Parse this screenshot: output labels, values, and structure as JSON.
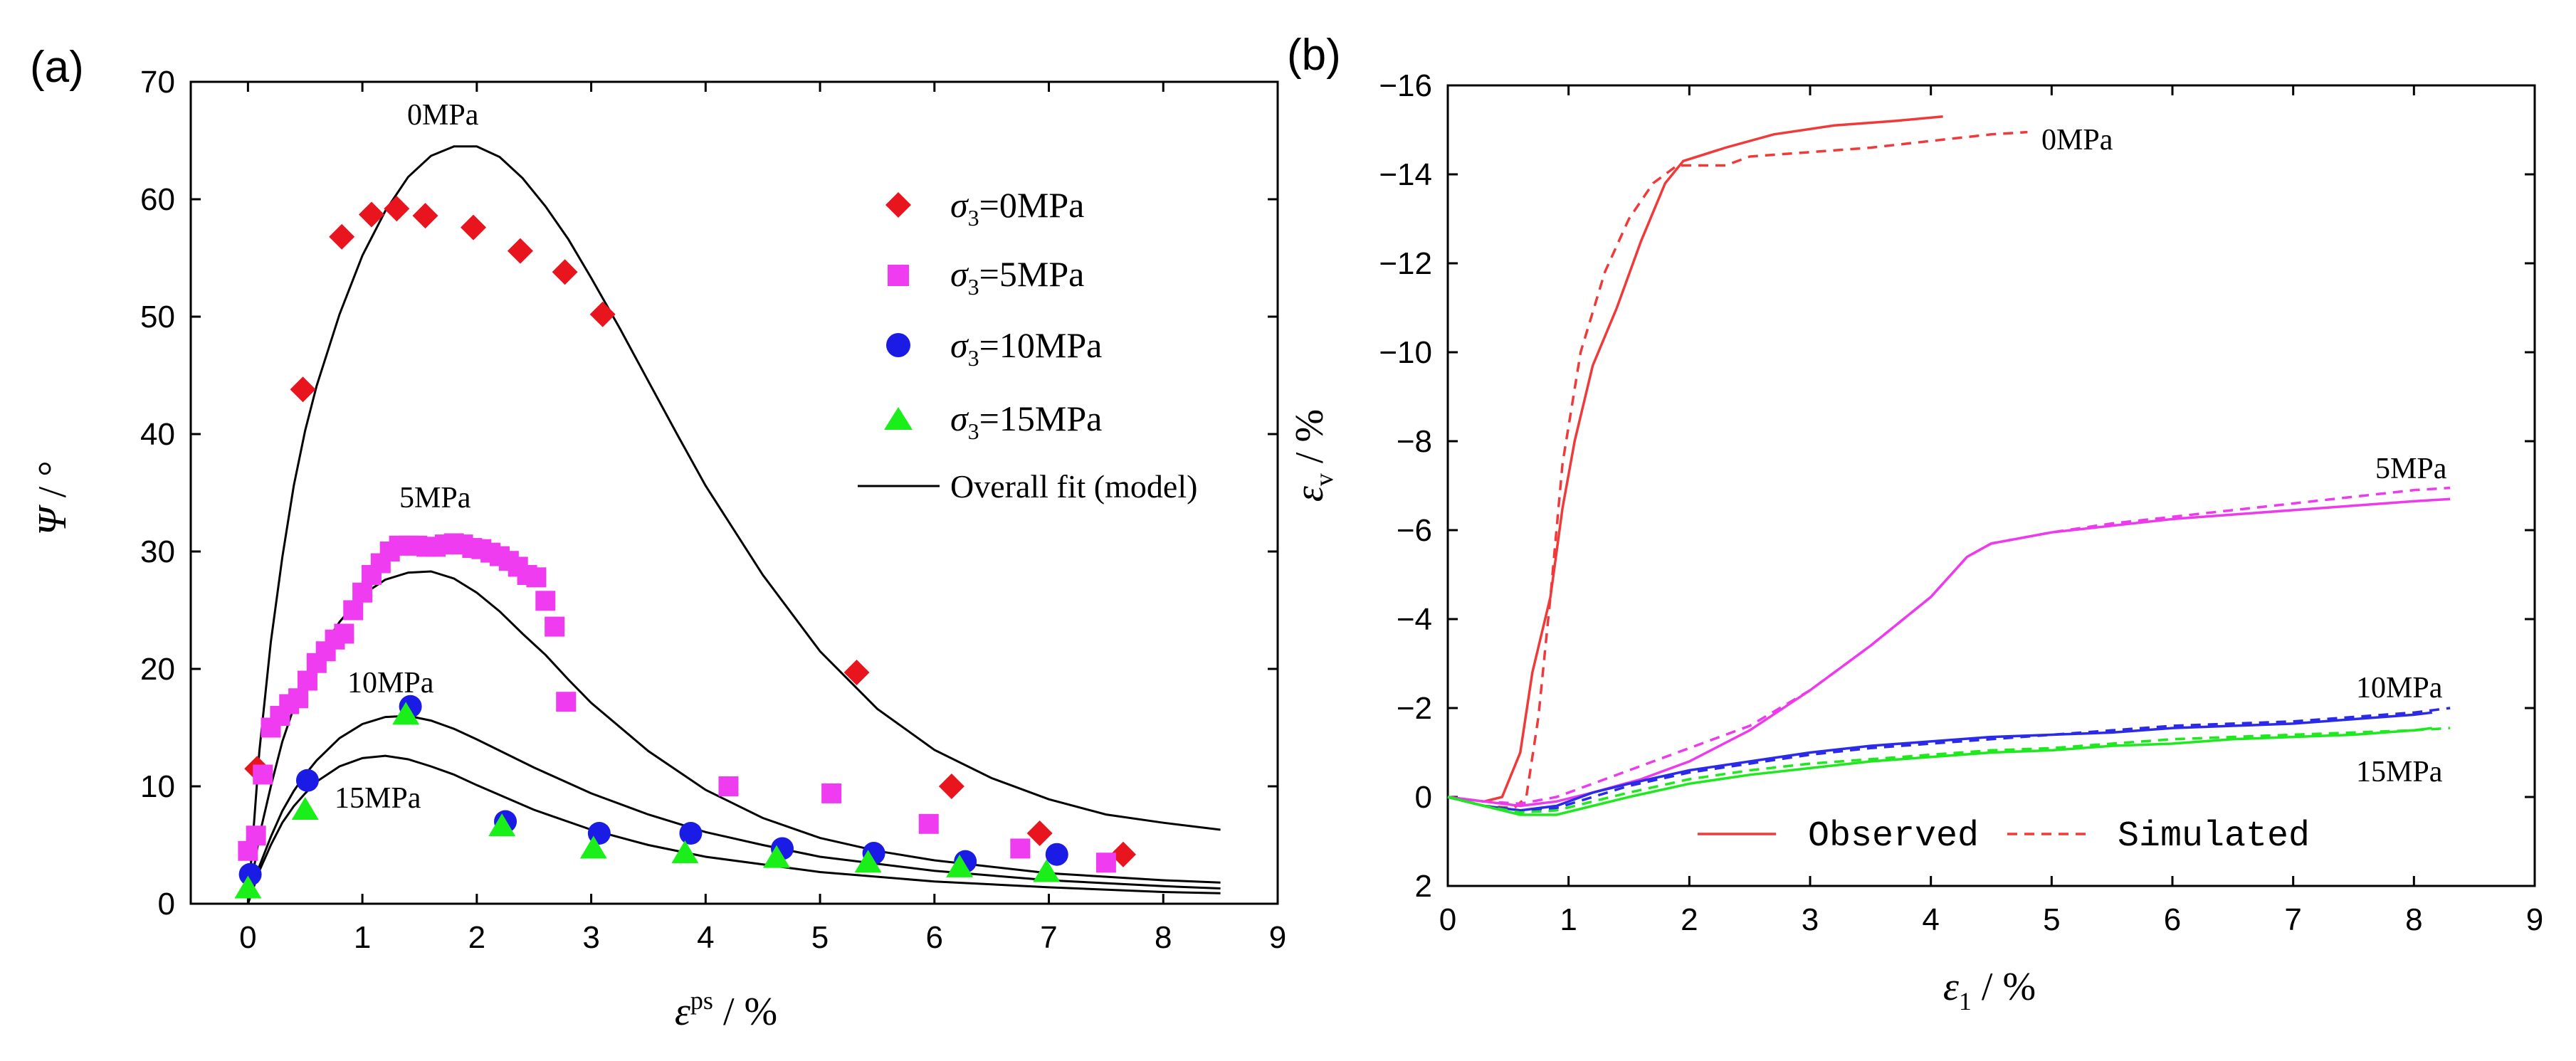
{
  "chart_data": [
    {
      "panel": "(a)",
      "type": "scatter",
      "xlabel_symbol": "ε",
      "xlabel_sup": "ps",
      "xlabel_unit": " / %",
      "ylabel_symbol": "Ψ",
      "ylabel_unit": " / °",
      "xlim": [
        -0.5,
        9
      ],
      "ylim": [
        0,
        70
      ],
      "xticks": [
        "0",
        "1",
        "2",
        "3",
        "4",
        "5",
        "6",
        "7",
        "8",
        "9"
      ],
      "yticks": [
        "0",
        "10",
        "20",
        "30",
        "40",
        "50",
        "60",
        "70"
      ],
      "series": [
        {
          "name": "0MPa",
          "legend_pre": "σ",
          "legend_sub": "3",
          "legend_post": "=0MPa",
          "marker": "diamond",
          "color": "#e8141e",
          "x": [
            0.08,
            0.48,
            0.82,
            1.08,
            1.3,
            1.55,
            1.97,
            2.38,
            2.77,
            3.1,
            5.32,
            6.15,
            6.92,
            7.65
          ],
          "y": [
            11.5,
            43.8,
            56.8,
            58.7,
            59.2,
            58.6,
            57.6,
            55.6,
            53.8,
            50.2,
            19.7,
            10.0,
            6.0,
            4.2
          ]
        },
        {
          "name": "5MPa",
          "legend_pre": "σ",
          "legend_sub": "3",
          "legend_post": "=5MPa",
          "marker": "square",
          "color": "#f03cf0",
          "x": [
            0.0,
            0.07,
            0.13,
            0.2,
            0.28,
            0.36,
            0.44,
            0.52,
            0.6,
            0.68,
            0.76,
            0.84,
            0.92,
            1.0,
            1.08,
            1.16,
            1.24,
            1.32,
            1.4,
            1.48,
            1.56,
            1.64,
            1.72,
            1.8,
            1.88,
            1.96,
            2.04,
            2.12,
            2.2,
            2.28,
            2.36,
            2.44,
            2.52,
            2.6,
            2.68,
            2.78,
            4.2,
            5.1,
            5.95,
            6.75,
            7.5
          ],
          "y": [
            4.5,
            5.8,
            11.0,
            15.0,
            16.0,
            17.0,
            17.5,
            19.0,
            20.5,
            21.5,
            22.5,
            23.0,
            25.0,
            26.5,
            28.0,
            29.0,
            30.0,
            30.5,
            30.5,
            30.5,
            30.4,
            30.4,
            30.6,
            30.7,
            30.6,
            30.3,
            30.2,
            29.9,
            29.6,
            29.2,
            28.7,
            28.0,
            27.8,
            25.8,
            23.6,
            17.2,
            10.0,
            9.4,
            6.8,
            4.7,
            3.5
          ]
        },
        {
          "name": "10MPa",
          "legend_pre": "σ",
          "legend_sub": "3",
          "legend_post": "=10MPa",
          "marker": "circle",
          "color": "#1b1be6",
          "x": [
            0.02,
            0.52,
            1.42,
            2.25,
            3.07,
            3.87,
            4.67,
            5.47,
            6.27,
            7.07
          ],
          "y": [
            2.5,
            10.5,
            16.8,
            7.0,
            6.0,
            6.0,
            4.7,
            4.3,
            3.6,
            4.2
          ]
        },
        {
          "name": "15MPa",
          "legend_pre": "σ",
          "legend_sub": "3",
          "legend_post": "=15MPa",
          "marker": "triangle",
          "color": "#1aef1a",
          "x": [
            0.0,
            0.5,
            1.38,
            2.22,
            3.02,
            3.82,
            4.62,
            5.42,
            6.22,
            6.98
          ],
          "y": [
            1.3,
            8.0,
            16.1,
            6.6,
            4.7,
            4.3,
            3.9,
            3.5,
            3.1,
            2.7
          ]
        }
      ],
      "fit_legend": "Overall fit (model)",
      "fit_curves": [
        {
          "label": "0MPa",
          "x": [
            0,
            0.1,
            0.2,
            0.3,
            0.4,
            0.5,
            0.6,
            0.8,
            1.0,
            1.2,
            1.4,
            1.6,
            1.8,
            2.0,
            2.2,
            2.4,
            2.6,
            2.8,
            3.0,
            3.25,
            3.5,
            3.75,
            4.0,
            4.5,
            5.0,
            5.5,
            6.0,
            6.5,
            7.0,
            7.5,
            8.0,
            8.5
          ],
          "y": [
            0,
            13.0,
            22.3,
            29.5,
            35.6,
            40.3,
            44.1,
            50.2,
            55.2,
            59.0,
            61.9,
            63.7,
            64.5,
            64.5,
            63.6,
            61.8,
            59.4,
            56.6,
            53.3,
            49.0,
            44.5,
            40.0,
            35.6,
            28.0,
            21.5,
            16.6,
            13.1,
            10.7,
            8.9,
            7.6,
            6.9,
            6.3
          ]
        },
        {
          "label": "5MPa",
          "x": [
            0,
            0.1,
            0.2,
            0.3,
            0.4,
            0.5,
            0.6,
            0.8,
            1.0,
            1.2,
            1.4,
            1.6,
            1.8,
            2.0,
            2.2,
            2.4,
            2.6,
            2.8,
            3.0,
            3.5,
            4.0,
            4.5,
            5.0,
            5.5,
            6.0,
            7.0,
            8.0,
            8.5
          ],
          "y": [
            0,
            5.8,
            10.0,
            13.8,
            16.7,
            19.0,
            21.0,
            24.0,
            26.3,
            27.6,
            28.2,
            28.3,
            27.7,
            26.5,
            24.9,
            23.0,
            21.2,
            19.1,
            17.1,
            13.0,
            9.7,
            7.3,
            5.6,
            4.5,
            3.7,
            2.6,
            2.0,
            1.8
          ]
        },
        {
          "label": "10MPa",
          "x": [
            0,
            0.1,
            0.2,
            0.3,
            0.4,
            0.5,
            0.6,
            0.8,
            1.0,
            1.2,
            1.4,
            1.6,
            1.8,
            2.0,
            2.5,
            3.0,
            3.5,
            4.0,
            4.5,
            5.0,
            6.0,
            7.0,
            8.0,
            8.5
          ],
          "y": [
            0,
            3.2,
            5.7,
            7.9,
            9.6,
            11.0,
            12.2,
            14.1,
            15.3,
            15.9,
            16.0,
            15.6,
            14.9,
            14.0,
            11.6,
            9.4,
            7.6,
            6.1,
            5.0,
            4.0,
            2.8,
            2.0,
            1.5,
            1.3
          ]
        },
        {
          "label": "15MPa",
          "x": [
            0,
            0.1,
            0.2,
            0.3,
            0.4,
            0.5,
            0.6,
            0.8,
            1.0,
            1.2,
            1.4,
            1.6,
            1.8,
            2.0,
            2.5,
            3.0,
            3.5,
            4.0,
            5.0,
            6.0,
            7.0,
            8.0,
            8.5
          ],
          "y": [
            0,
            2.8,
            5.0,
            6.9,
            8.3,
            9.4,
            10.4,
            11.7,
            12.4,
            12.6,
            12.3,
            11.7,
            11.0,
            10.1,
            8.0,
            6.3,
            5.0,
            4.0,
            2.7,
            1.9,
            1.4,
            1.0,
            0.9
          ]
        }
      ],
      "curve_labels": [
        "0MPa",
        "5MPa",
        "10MPa",
        "15MPa"
      ]
    },
    {
      "panel": "(b)",
      "type": "line",
      "xlabel_symbol": "ε",
      "xlabel_sub": "1",
      "xlabel_unit": " / %",
      "ylabel_symbol": "ε",
      "ylabel_sub": "v",
      "ylabel_unit": " / %",
      "xlim": [
        0,
        9
      ],
      "ylim": [
        2,
        -16
      ],
      "xticks": [
        "0",
        "1",
        "2",
        "3",
        "4",
        "5",
        "6",
        "7",
        "8",
        "9"
      ],
      "yticks": [
        "2",
        "0",
        "-2",
        "-4",
        "-6",
        "-8",
        "-10",
        "-12",
        "-14",
        "-16"
      ],
      "legend": {
        "observed": "Observed",
        "simulated": "Simulated"
      },
      "series": [
        {
          "name": "0MPa",
          "color": "#f03a3a",
          "style": "observed",
          "x": [
            0,
            0.3,
            0.45,
            0.6,
            0.7,
            0.85,
            0.95,
            1.05,
            1.2,
            1.4,
            1.6,
            1.8,
            1.95,
            2.3,
            2.7,
            3.2,
            3.7,
            4.1
          ],
          "y": [
            0,
            0.1,
            0.0,
            -1.0,
            -2.8,
            -4.5,
            -6.5,
            -8.0,
            -9.7,
            -11.0,
            -12.5,
            -13.8,
            -14.3,
            -14.6,
            -14.9,
            -15.1,
            -15.2,
            -15.3
          ]
        },
        {
          "name": "0MPa",
          "color": "#f03a3a",
          "style": "simulated",
          "x": [
            0,
            0.3,
            0.55,
            0.65,
            0.75,
            0.85,
            0.95,
            1.1,
            1.3,
            1.5,
            1.7,
            1.9,
            2.3,
            2.5,
            3.0,
            3.5,
            4.0,
            4.5,
            4.8
          ],
          "y": [
            0,
            0.2,
            0.25,
            0.0,
            -1.8,
            -4.5,
            -7.5,
            -10.0,
            -11.8,
            -13.0,
            -13.8,
            -14.2,
            -14.2,
            -14.4,
            -14.5,
            -14.6,
            -14.75,
            -14.9,
            -14.95
          ]
        },
        {
          "name": "5MPa",
          "color": "#ec3aec",
          "style": "observed",
          "x": [
            0,
            0.3,
            0.6,
            0.9,
            1.2,
            1.6,
            2.0,
            2.5,
            3.0,
            3.5,
            4.0,
            4.3,
            4.5,
            5.0,
            5.5,
            6.0,
            6.5,
            7.0,
            7.5,
            8.0,
            8.3
          ],
          "y": [
            0,
            0.1,
            0.2,
            0.1,
            -0.1,
            -0.4,
            -0.8,
            -1.5,
            -2.4,
            -3.4,
            -4.5,
            -5.4,
            -5.7,
            -5.95,
            -6.1,
            -6.25,
            -6.35,
            -6.45,
            -6.55,
            -6.65,
            -6.7
          ]
        },
        {
          "name": "5MPa",
          "color": "#ec3aec",
          "style": "simulated",
          "x": [
            0,
            0.3,
            0.6,
            0.9,
            1.2,
            1.6,
            2.0,
            2.5,
            3.0,
            3.5,
            4.0,
            4.3,
            4.5,
            5.0,
            5.5,
            6.0,
            6.5,
            7.0,
            7.5,
            8.0,
            8.3
          ],
          "y": [
            0,
            0.1,
            0.15,
            0.0,
            -0.3,
            -0.7,
            -1.1,
            -1.6,
            -2.4,
            -3.4,
            -4.5,
            -5.4,
            -5.7,
            -5.95,
            -6.15,
            -6.3,
            -6.45,
            -6.6,
            -6.75,
            -6.9,
            -6.95
          ]
        },
        {
          "name": "10MPa",
          "color": "#2a2ae8",
          "style": "observed",
          "x": [
            0,
            0.3,
            0.6,
            0.9,
            1.2,
            1.5,
            2.0,
            2.5,
            3.0,
            3.5,
            4.0,
            4.5,
            5.0,
            5.5,
            6.0,
            6.5,
            7.0,
            7.5,
            8.0,
            8.15
          ],
          "y": [
            0,
            0.2,
            0.3,
            0.2,
            -0.1,
            -0.3,
            -0.6,
            -0.8,
            -1.0,
            -1.15,
            -1.25,
            -1.35,
            -1.4,
            -1.45,
            -1.55,
            -1.6,
            -1.65,
            -1.75,
            -1.85,
            -1.9
          ]
        },
        {
          "name": "10MPa",
          "color": "#2a2ae8",
          "style": "simulated",
          "x": [
            0,
            0.3,
            0.6,
            0.9,
            1.2,
            1.5,
            2.0,
            2.5,
            3.0,
            3.5,
            4.0,
            4.5,
            5.0,
            5.5,
            6.0,
            6.5,
            7.0,
            7.5,
            8.0,
            8.3
          ],
          "y": [
            0,
            0.2,
            0.3,
            0.25,
            0.0,
            -0.25,
            -0.55,
            -0.75,
            -0.95,
            -1.1,
            -1.2,
            -1.3,
            -1.4,
            -1.5,
            -1.6,
            -1.65,
            -1.7,
            -1.8,
            -1.9,
            -2.0
          ]
        },
        {
          "name": "15MPa",
          "color": "#1ee81e",
          "style": "observed",
          "x": [
            0,
            0.3,
            0.6,
            0.9,
            1.2,
            1.5,
            2.0,
            2.5,
            3.0,
            3.5,
            4.0,
            4.5,
            5.0,
            5.5,
            6.0,
            6.5,
            7.0,
            7.5,
            8.0,
            8.15
          ],
          "y": [
            0,
            0.2,
            0.4,
            0.4,
            0.2,
            0.0,
            -0.3,
            -0.5,
            -0.65,
            -0.8,
            -0.9,
            -1.0,
            -1.05,
            -1.15,
            -1.2,
            -1.3,
            -1.35,
            -1.4,
            -1.5,
            -1.55
          ]
        },
        {
          "name": "15MPa",
          "color": "#1ee81e",
          "style": "simulated",
          "x": [
            0,
            0.3,
            0.6,
            0.9,
            1.2,
            1.5,
            2.0,
            2.5,
            3.0,
            3.5,
            4.0,
            4.5,
            5.0,
            5.5,
            6.0,
            6.5,
            7.0,
            7.5,
            8.0,
            8.3
          ],
          "y": [
            0,
            0.2,
            0.35,
            0.3,
            0.1,
            -0.1,
            -0.4,
            -0.6,
            -0.75,
            -0.85,
            -0.95,
            -1.05,
            -1.1,
            -1.2,
            -1.3,
            -1.35,
            -1.4,
            -1.45,
            -1.5,
            -1.55
          ]
        }
      ],
      "curve_labels": [
        "0MPa",
        "5MPa",
        "10MPa",
        "15MPa"
      ]
    }
  ]
}
